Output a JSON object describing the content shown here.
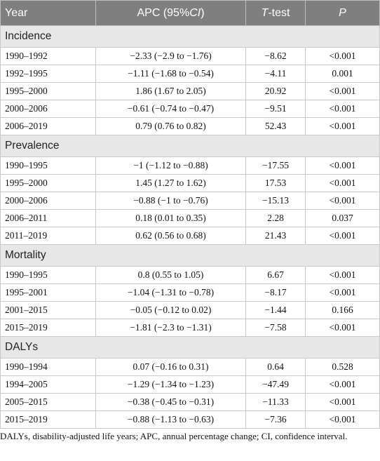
{
  "headers": {
    "year": "Year",
    "apc_prefix": "APC (95%",
    "apc_ci": "CI",
    "apc_suffix": ")",
    "t_italic": "T",
    "t_suffix": "-test",
    "p": "P"
  },
  "sections": [
    {
      "title": "Incidence",
      "rows": [
        {
          "year": "1990–1992",
          "apc": "−2.33 (−2.9 to −1.76)",
          "t": "−8.62",
          "p": "<0.001"
        },
        {
          "year": "1992–1995",
          "apc": "−1.11 (−1.68 to −0.54)",
          "t": "−4.11",
          "p": "0.001"
        },
        {
          "year": "1995–2000",
          "apc": "1.86 (1.67 to 2.05)",
          "t": "20.92",
          "p": "<0.001"
        },
        {
          "year": "2000–2006",
          "apc": "−0.61 (−0.74 to −0.47)",
          "t": "−9.51",
          "p": "<0.001"
        },
        {
          "year": "2006–2019",
          "apc": "0.79 (0.76 to 0.82)",
          "t": "52.43",
          "p": "<0.001"
        }
      ]
    },
    {
      "title": "Prevalence",
      "rows": [
        {
          "year": "1990–1995",
          "apc": "−1 (−1.12 to −0.88)",
          "t": "−17.55",
          "p": "<0.001"
        },
        {
          "year": "1995–2000",
          "apc": "1.45 (1.27 to 1.62)",
          "t": "17.53",
          "p": "<0.001"
        },
        {
          "year": "2000–2006",
          "apc": "−0.88 (−1 to −0.76)",
          "t": "−15.13",
          "p": "<0.001"
        },
        {
          "year": "2006–2011",
          "apc": "0.18 (0.01 to 0.35)",
          "t": "2.28",
          "p": "0.037"
        },
        {
          "year": "2011–2019",
          "apc": "0.62 (0.56 to 0.68)",
          "t": "21.43",
          "p": "<0.001"
        }
      ]
    },
    {
      "title": "Mortality",
      "rows": [
        {
          "year": "1990–1995",
          "apc": "0.8 (0.55 to 1.05)",
          "t": "6.67",
          "p": "<0.001"
        },
        {
          "year": "1995–2001",
          "apc": "−1.04 (−1.31 to −0.78)",
          "t": "−8.17",
          "p": "<0.001"
        },
        {
          "year": "2001–2015",
          "apc": "−0.05 (−0.12 to 0.02)",
          "t": "−1.44",
          "p": "0.166"
        },
        {
          "year": "2015–2019",
          "apc": "−1.81 (−2.3 to −1.31)",
          "t": "−7.58",
          "p": "<0.001"
        }
      ]
    },
    {
      "title": "DALYs",
      "rows": [
        {
          "year": "1990–1994",
          "apc": "0.07 (−0.16 to 0.31)",
          "t": "0.64",
          "p": "0.528"
        },
        {
          "year": "1994–2005",
          "apc": "−1.29 (−1.34 to −1.23)",
          "t": "−47.49",
          "p": "<0.001"
        },
        {
          "year": "2005–2015",
          "apc": "−0.38 (−0.45 to −0.31)",
          "t": "−11.33",
          "p": "<0.001"
        },
        {
          "year": "2015–2019",
          "apc": "−0.88 (−1.13 to −0.63)",
          "t": "−7.36",
          "p": "<0.001"
        }
      ]
    }
  ],
  "footnote": "DALYs, disability-adjusted life years; APC, annual percentage change; CI, confidence interval.",
  "colors": {
    "header_bg": "#7f7f7f",
    "section_bg": "#e7e7e7",
    "border": "#c9c9c9"
  }
}
